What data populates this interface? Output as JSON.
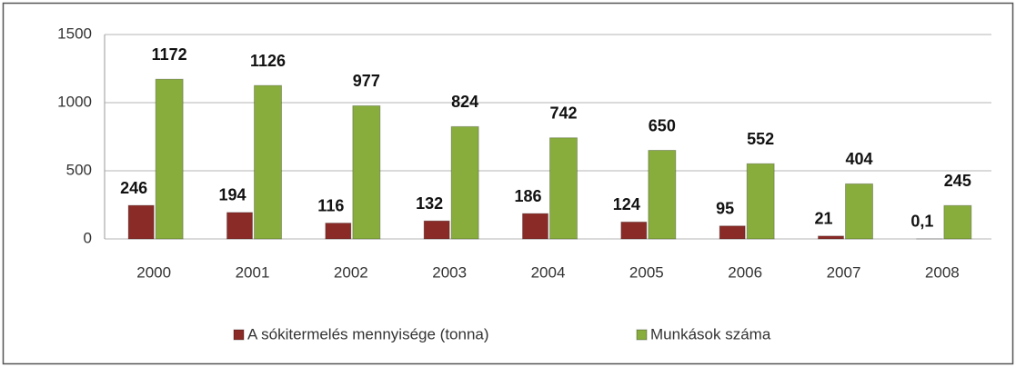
{
  "chart_data": {
    "type": "bar",
    "categories": [
      "2000",
      "2001",
      "2002",
      "2003",
      "2004",
      "2005",
      "2006",
      "2007",
      "2008"
    ],
    "series": [
      {
        "name": "A sókitermelés mennyisége (tonna)",
        "color": "#8b2b27",
        "values": [
          246,
          194,
          116,
          132,
          186,
          124,
          95,
          21,
          0.1
        ],
        "value_labels": [
          "246",
          "194",
          "116",
          "132",
          "186",
          "124",
          "95",
          "21",
          "0,1"
        ]
      },
      {
        "name": "Munkások száma",
        "color": "#88ad3d",
        "values": [
          1172,
          1126,
          977,
          824,
          742,
          650,
          552,
          404,
          245
        ]
      }
    ],
    "ylim": [
      0,
      1500
    ],
    "yticks": [
      0,
      500,
      1000,
      1500
    ],
    "grid": true,
    "legend": "bottom"
  }
}
